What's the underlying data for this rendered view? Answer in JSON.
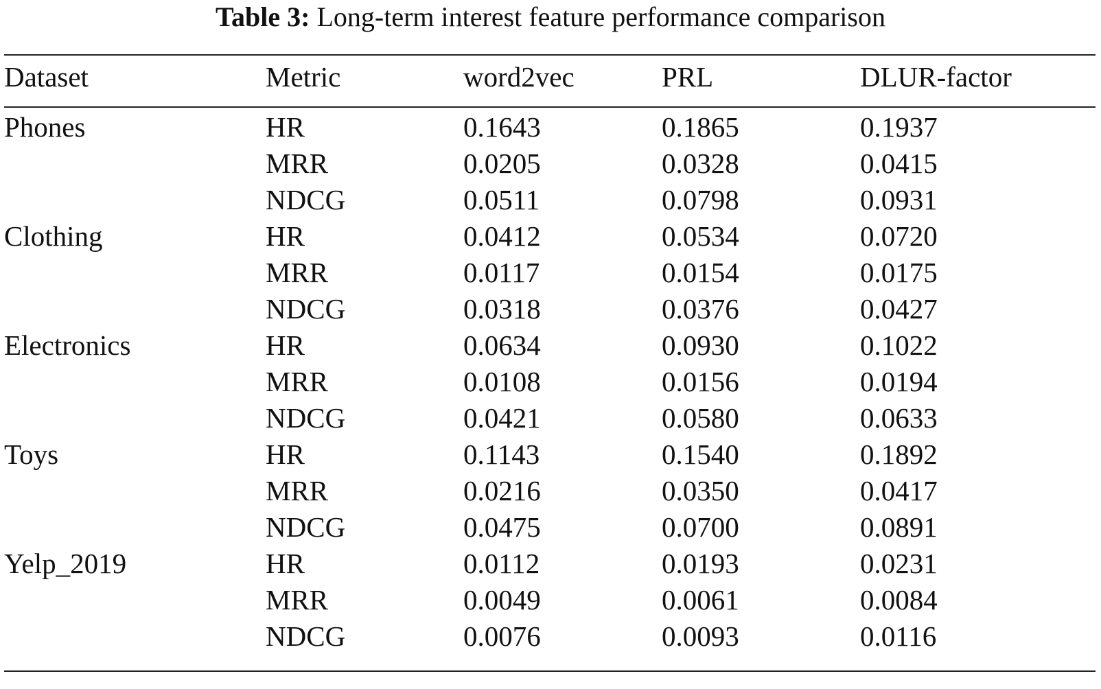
{
  "caption": {
    "label": "Table 3:",
    "text": "Long-term interest feature performance comparison"
  },
  "table": {
    "headers": [
      "Dataset",
      "Metric",
      "word2vec",
      "PRL",
      "DLUR-factor"
    ],
    "rows": [
      [
        "Phones",
        "HR",
        "0.1643",
        "0.1865",
        "0.1937"
      ],
      [
        "",
        "MRR",
        "0.0205",
        "0.0328",
        "0.0415"
      ],
      [
        "",
        "NDCG",
        "0.0511",
        "0.0798",
        "0.0931"
      ],
      [
        "Clothing",
        "HR",
        "0.0412",
        "0.0534",
        "0.0720"
      ],
      [
        "",
        "MRR",
        "0.0117",
        "0.0154",
        "0.0175"
      ],
      [
        "",
        "NDCG",
        "0.0318",
        "0.0376",
        "0.0427"
      ],
      [
        "Electronics",
        "HR",
        "0.0634",
        "0.0930",
        "0.1022"
      ],
      [
        "",
        "MRR",
        "0.0108",
        "0.0156",
        "0.0194"
      ],
      [
        "",
        "NDCG",
        "0.0421",
        "0.0580",
        "0.0633"
      ],
      [
        "Toys",
        "HR",
        "0.1143",
        "0.1540",
        "0.1892"
      ],
      [
        "",
        "MRR",
        "0.0216",
        "0.0350",
        "0.0417"
      ],
      [
        "",
        "NDCG",
        "0.0475",
        "0.0700",
        "0.0891"
      ],
      [
        "Yelp_2019",
        "HR",
        "0.0112",
        "0.0193",
        "0.0231"
      ],
      [
        "",
        "MRR",
        "0.0049",
        "0.0061",
        "0.0084"
      ],
      [
        "",
        "NDCG",
        "0.0076",
        "0.0093",
        "0.0116"
      ]
    ]
  }
}
